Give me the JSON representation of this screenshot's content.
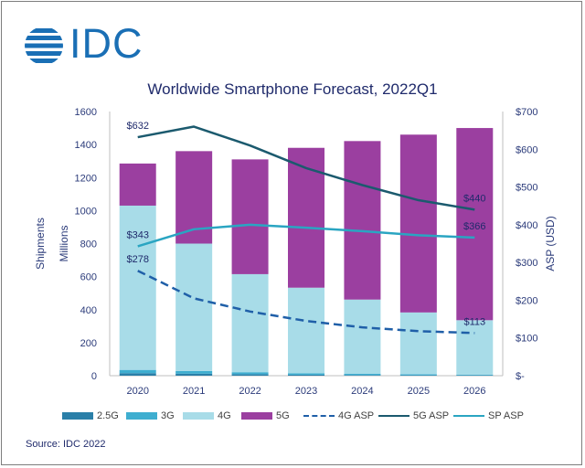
{
  "brand": {
    "logo_text": "IDC",
    "logo_color": "#1a6fb5"
  },
  "source": "Source: IDC 2022",
  "chart_data": {
    "type": "bar",
    "stacked": true,
    "title": "Worldwide Smartphone Forecast, 2022Q1",
    "categories": [
      "2020",
      "2021",
      "2022",
      "2023",
      "2024",
      "2025",
      "2026"
    ],
    "y_left": {
      "label": "Shipments",
      "sublabel": "Millions",
      "range": [
        0,
        1600
      ],
      "ticks": [
        0,
        200,
        400,
        600,
        800,
        1000,
        1200,
        1400,
        1600
      ],
      "tick_labels": [
        "0",
        "200",
        "400",
        "600",
        "800",
        "1000",
        "1200",
        "1400",
        "1600"
      ]
    },
    "y_right": {
      "label": "ASP (USD)",
      "range": [
        0,
        700
      ],
      "ticks": [
        0,
        100,
        200,
        300,
        400,
        500,
        600,
        700
      ],
      "tick_labels": [
        "$-",
        "$100",
        "$200",
        "$300",
        "$400",
        "$500",
        "$600",
        "$700"
      ]
    },
    "grid": false,
    "legend_position": "bottom",
    "series": [
      {
        "name": "2.5G",
        "axis": "left",
        "kind": "bar",
        "color": "#2a7fa8",
        "values": [
          15,
          12,
          9,
          6,
          4,
          3,
          2
        ]
      },
      {
        "name": "3G",
        "axis": "left",
        "kind": "bar",
        "color": "#3eaed0",
        "values": [
          20,
          16,
          12,
          9,
          7,
          5,
          4
        ]
      },
      {
        "name": "4G",
        "axis": "left",
        "kind": "bar",
        "color": "#a8dce8",
        "values": [
          995,
          772,
          594,
          518,
          450,
          375,
          330
        ]
      },
      {
        "name": "5G",
        "axis": "left",
        "kind": "bar",
        "color": "#9b3fa0",
        "values": [
          255,
          560,
          695,
          847,
          960,
          1077,
          1164
        ]
      },
      {
        "name": "4G ASP",
        "axis": "right",
        "kind": "line",
        "style": "dashed",
        "color": "#1f5fa8",
        "values": [
          278,
          205,
          170,
          145,
          128,
          118,
          113
        ]
      },
      {
        "name": "5G ASP",
        "axis": "right",
        "kind": "line",
        "style": "solid",
        "color": "#1b5a6e",
        "values": [
          632,
          660,
          610,
          550,
          505,
          465,
          440
        ]
      },
      {
        "name": "SP ASP",
        "axis": "right",
        "kind": "line",
        "style": "solid",
        "color": "#2aa5c2",
        "values": [
          343,
          388,
          400,
          392,
          383,
          372,
          366
        ]
      }
    ],
    "data_labels": [
      {
        "series": "5G ASP",
        "index": 0,
        "text": "$632"
      },
      {
        "series": "SP ASP",
        "index": 0,
        "text": "$343"
      },
      {
        "series": "4G ASP",
        "index": 0,
        "text": "$278"
      },
      {
        "series": "5G ASP",
        "index": 6,
        "text": "$440"
      },
      {
        "series": "SP ASP",
        "index": 6,
        "text": "$366"
      },
      {
        "series": "4G ASP",
        "index": 6,
        "text": "$113"
      }
    ]
  }
}
